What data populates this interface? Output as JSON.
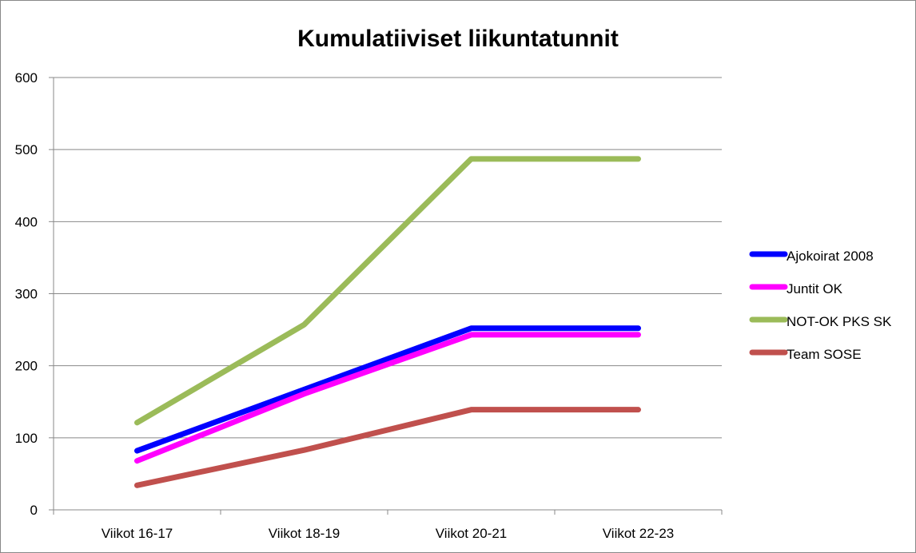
{
  "chart_data": {
    "type": "line",
    "title": "Kumulatiiviset liikuntatunnit",
    "xlabel": "",
    "ylabel": "",
    "categories": [
      "Viikot 16-17",
      "Viikot 18-19",
      "Viikot 20-21",
      "Viikot 22-23"
    ],
    "ylim": [
      0,
      600
    ],
    "yticks": [
      0,
      100,
      200,
      300,
      400,
      500,
      600
    ],
    "grid": true,
    "legend": "right",
    "series": [
      {
        "name": "Ajokoirat 2008",
        "color": "#0000ff",
        "values": [
          82,
          167,
          252,
          252
        ]
      },
      {
        "name": "Juntit OK",
        "color": "#ff00ff",
        "values": [
          68,
          161,
          243,
          243
        ]
      },
      {
        "name": "NOT-OK PKS SK",
        "color": "#9bbb59",
        "values": [
          121,
          257,
          487,
          487
        ]
      },
      {
        "name": "Team SOSE",
        "color": "#c0504d",
        "values": [
          34,
          83,
          139,
          139
        ]
      }
    ]
  }
}
